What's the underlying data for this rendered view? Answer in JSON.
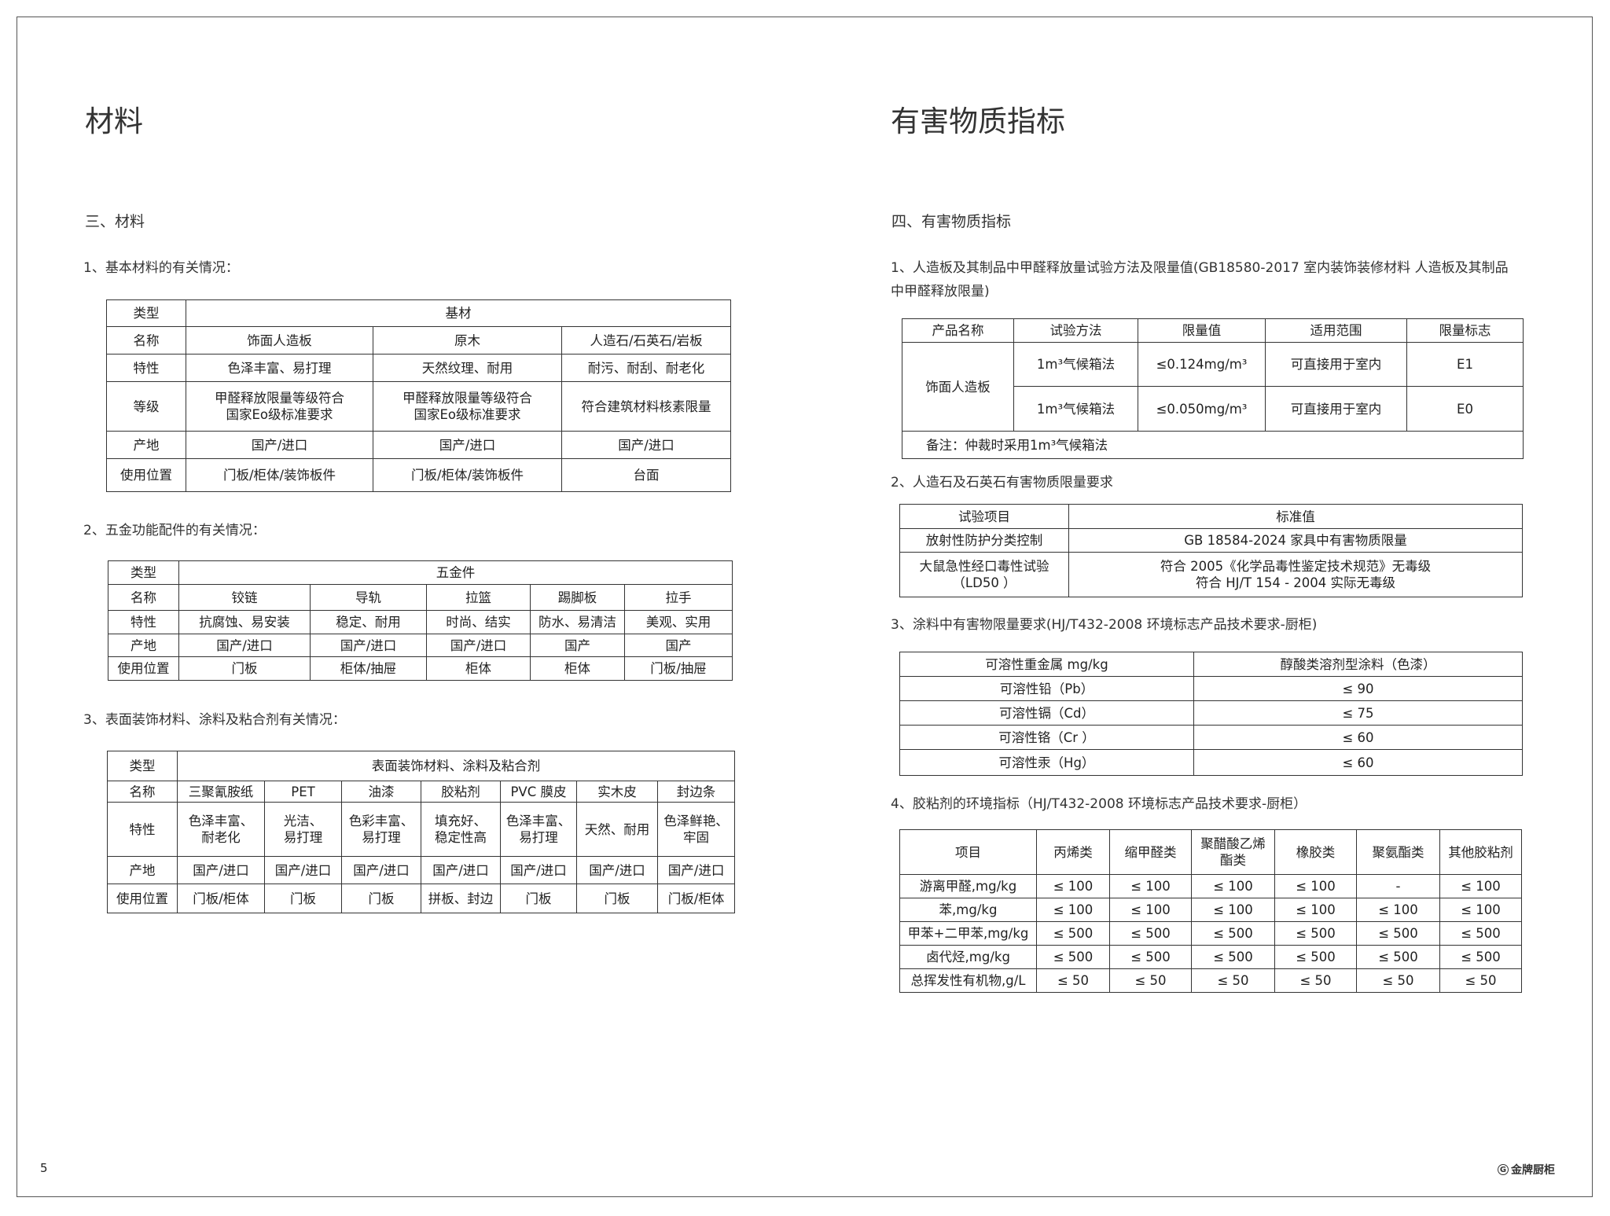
{
  "left": {
    "title": "材料",
    "section": "三、材料",
    "sub1": "1、基本材料的有关情况：",
    "sub2": "2、五金功能配件的有关情况：",
    "sub3": "3、表面装饰材料、涂料及粘合剂有关情况：",
    "table1": [
      [
        "类型",
        "基材"
      ],
      [
        "名称",
        "饰面人造板",
        "原木",
        "人造石/石英石/岩板"
      ],
      [
        "特性",
        "色泽丰富、易打理",
        "天然纹理、耐用",
        "耐污、耐刮、耐老化"
      ],
      [
        "等级",
        "甲醛释放限量等级符合\n国家Eo级标准要求",
        "甲醛释放限量等级符合\n国家Eo级标准要求",
        "符合建筑材料核素限量"
      ],
      [
        "产地",
        "国产/进口",
        "国产/进口",
        "国产/进口"
      ],
      [
        "使用位置",
        "门板/柜体/装饰板件",
        "门板/柜体/装饰板件",
        "台面"
      ]
    ],
    "table2": [
      [
        "类型",
        "五金件"
      ],
      [
        "名称",
        "铰链",
        "导轨",
        "拉篮",
        "踢脚板",
        "拉手"
      ],
      [
        "特性",
        "抗腐蚀、易安装",
        "稳定、耐用",
        "时尚、结实",
        "防水、易清洁",
        "美观、实用"
      ],
      [
        "产地",
        "国产/进口",
        "国产/进口",
        "国产/进口",
        "国产",
        "国产"
      ],
      [
        "使用位置",
        "门板",
        "柜体/抽屉",
        "柜体",
        "柜体",
        "门板/抽屉"
      ]
    ],
    "table3": [
      [
        "类型",
        "表面装饰材料、涂料及粘合剂"
      ],
      [
        "名称",
        "三聚氰胺纸",
        "PET",
        "油漆",
        "胶粘剂",
        "PVC  膜皮",
        "实木皮",
        "封边条"
      ],
      [
        "特性",
        "色泽丰富、\n耐老化",
        "光洁、\n易打理",
        "色彩丰富、\n易打理",
        "填充好、\n稳定性高",
        "色泽丰富、\n易打理",
        "天然、耐用",
        "色泽鲜艳、\n牢固"
      ],
      [
        "产地",
        "国产/进口",
        "国产/进口",
        "国产/进口",
        "国产/进口",
        "国产/进口",
        "国产/进口",
        "国产/进口"
      ],
      [
        "使用位置",
        "门板/柜体",
        "门板",
        "门板",
        "拼板、封边",
        "门板",
        "门板",
        "门板/柜体"
      ]
    ],
    "page_number": "5"
  },
  "right": {
    "title": "有害物质指标",
    "section": "四、有害物质指标",
    "sub1_line1": "1、人造板及其制品中甲醛释放量试验方法及限量值(GB18580-2017 室内装饰装修材料 人造板及其制品",
    "sub1_line2": "中甲醛释放限量)",
    "sub2": "2、人造石及石英石有害物质限量要求",
    "sub3": "3、涂料中有害物限量要求(HJ/T432-2008 环境标志产品技术要求-厨柜)",
    "sub4": "4、胶粘剂的环境指标（HJ/T432-2008 环境标志产品技术要求-厨柜）",
    "table1": [
      [
        "产品名称",
        "试验方法",
        "限量值",
        "适用范围",
        "限量标志"
      ],
      [
        "饰面人造板",
        "1m³气候箱法",
        "≤0.124mg/m³",
        "可直接用于室内",
        "E1"
      ],
      [
        "1m³气候箱法",
        "≤0.050mg/m³",
        "可直接用于室内",
        "E0"
      ],
      [
        "备注：仲裁时采用1m³气候箱法"
      ]
    ],
    "table2": [
      [
        "试验项目",
        "标准值"
      ],
      [
        "放射性防护分类控制",
        "GB 18584-2024 家具中有害物质限量"
      ],
      [
        "大鼠急性经口毒性试验\n（LD50 ）",
        "符合 2005《化学品毒性鉴定技术规范》无毒级\n符合 HJ/T 154 - 2004  实际无毒级"
      ]
    ],
    "table3": [
      [
        "可溶性重金属 mg/kg",
        "醇酸类溶剂型涂料（色漆）"
      ],
      [
        "可溶性铅（Pb）",
        "≤ 90"
      ],
      [
        "可溶性镉（Cd）",
        "≤ 75"
      ],
      [
        "可溶性铬（Cr ）",
        "≤ 60"
      ],
      [
        "可溶性汞（Hg）",
        "≤ 60"
      ]
    ],
    "table4": [
      [
        "项目",
        "丙烯类",
        "缩甲醛类",
        "聚醋酸乙烯\n酯类",
        "橡胶类",
        "聚氨酯类",
        "其他胶粘剂"
      ],
      [
        "游离甲醛,mg/kg",
        "≤ 100",
        "≤ 100",
        "≤ 100",
        "≤ 100",
        "-",
        "≤ 100"
      ],
      [
        "苯,mg/kg",
        "≤ 100",
        "≤ 100",
        "≤ 100",
        "≤ 100",
        "≤ 100",
        "≤ 100"
      ],
      [
        "甲苯+二甲苯,mg/kg",
        "≤ 500",
        "≤ 500",
        "≤ 500",
        "≤ 500",
        "≤ 500",
        "≤ 500"
      ],
      [
        "卤代烃,mg/kg",
        "≤ 500",
        "≤ 500",
        "≤ 500",
        "≤ 500",
        "≤ 500",
        "≤ 500"
      ],
      [
        "总挥发性有机物,g/L",
        "≤ 50",
        "≤ 50",
        "≤ 50",
        "≤ 50",
        "≤ 50",
        "≤ 50"
      ]
    ],
    "logo_text": "金牌厨柜",
    "logo_mark": "G"
  }
}
